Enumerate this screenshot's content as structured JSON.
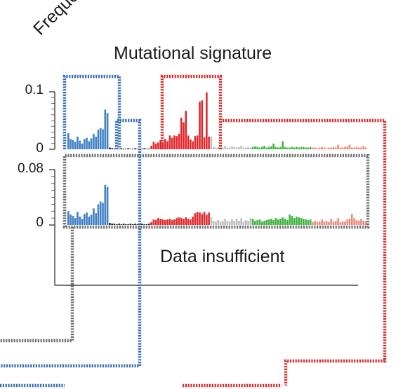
{
  "figure": {
    "title": "Mutational signature",
    "ylabel": "Frequency",
    "insufficient_label": "Data insufficient"
  },
  "colors": {
    "blue": "#3d7fc4",
    "black": "#1a1a1a",
    "red": "#e0262a",
    "gray": "#bdbdbd",
    "green": "#3bb33b",
    "salmon": "#ec8a78",
    "box_blue": "#3a6fb5",
    "box_gray": "#707070",
    "box_red": "#d32f2f"
  },
  "chart_data": [
    {
      "type": "bar",
      "panel": "top",
      "ylim": [
        0,
        0.1
      ],
      "ytick_labels": [
        "0",
        "0.1"
      ],
      "groups": [
        {
          "color": "blue",
          "values": [
            0.028,
            0.018,
            0.016,
            0.013,
            0.022,
            0.015,
            0.01,
            0.018,
            0.02,
            0.014,
            0.019,
            0.027,
            0.022,
            0.034,
            0.037,
            0.035,
            0.069,
            0.063
          ]
        },
        {
          "color": "black",
          "values": [
            0.003,
            0.002,
            0.001,
            0.002,
            0.001,
            0.002,
            0.001,
            0.001,
            0.002,
            0.001,
            0.001,
            0.002,
            0.001,
            0.001,
            0.001,
            0.002,
            0.001,
            0.001
          ]
        },
        {
          "color": "red",
          "values": [
            0.006,
            0.013,
            0.01,
            0.012,
            0.016,
            0.012,
            0.018,
            0.014,
            0.024,
            0.02,
            0.024,
            0.023,
            0.027,
            0.055,
            0.047,
            0.067,
            0.024,
            0.017,
            0.014,
            0.023,
            0.024,
            0.083,
            0.085,
            0.021,
            0.099,
            0.022
          ]
        },
        {
          "color": "gray",
          "values": [
            0.022,
            0.004,
            0.003,
            0.004,
            0.003,
            0.003,
            0.006,
            0.003,
            0.003,
            0.005,
            0.004,
            0.003,
            0.004,
            0.006,
            0.003,
            0.003,
            0.004,
            0.003
          ]
        },
        {
          "color": "green",
          "values": [
            0.004,
            0.005,
            0.004,
            0.003,
            0.004,
            0.006,
            0.003,
            0.004,
            0.005,
            0.01,
            0.004,
            0.003,
            0.004,
            0.014,
            0.004,
            0.003,
            0.003,
            0.004,
            0.003,
            0.004,
            0.003,
            0.004,
            0.004,
            0.003,
            0.003,
            0.004
          ]
        },
        {
          "color": "salmon",
          "values": [
            0.003,
            0.003,
            0.002,
            0.003,
            0.004,
            0.003,
            0.002,
            0.003,
            0.003,
            0.004,
            0.003,
            0.008,
            0.003,
            0.003,
            0.004,
            0.005,
            0.008,
            0.003,
            0.003,
            0.004,
            0.003,
            0.003,
            0.006,
            0.003
          ]
        }
      ]
    },
    {
      "type": "bar",
      "panel": "bottom",
      "ylim": [
        0,
        0.08
      ],
      "ytick_labels": [
        "0",
        "0.08"
      ],
      "groups": [
        {
          "color": "blue",
          "values": [
            0.02,
            0.015,
            0.013,
            0.01,
            0.019,
            0.012,
            0.009,
            0.016,
            0.018,
            0.012,
            0.015,
            0.024,
            0.017,
            0.03,
            0.034,
            0.032,
            0.058,
            0.055
          ]
        },
        {
          "color": "black",
          "values": [
            0.003,
            0.002,
            0.002,
            0.001,
            0.002,
            0.001,
            0.002,
            0.001,
            0.001,
            0.002,
            0.001,
            0.002,
            0.001,
            0.001,
            0.002,
            0.001,
            0.001,
            0.002
          ]
        },
        {
          "color": "red",
          "values": [
            0.004,
            0.008,
            0.007,
            0.01,
            0.009,
            0.008,
            0.007,
            0.008,
            0.009,
            0.007,
            0.008,
            0.01,
            0.011,
            0.01,
            0.009,
            0.011,
            0.009,
            0.008,
            0.012,
            0.017,
            0.019,
            0.018,
            0.016,
            0.019,
            0.015,
            0.018
          ]
        },
        {
          "color": "gray",
          "values": [
            0.011,
            0.006,
            0.005,
            0.007,
            0.005,
            0.006,
            0.009,
            0.006,
            0.005,
            0.008,
            0.006,
            0.009,
            0.006,
            0.01,
            0.005,
            0.007,
            0.006,
            0.01
          ]
        },
        {
          "color": "green",
          "values": [
            0.009,
            0.006,
            0.007,
            0.008,
            0.005,
            0.006,
            0.007,
            0.008,
            0.009,
            0.007,
            0.01,
            0.008,
            0.009,
            0.011,
            0.009,
            0.007,
            0.015,
            0.013,
            0.01,
            0.012,
            0.011,
            0.01,
            0.009,
            0.008,
            0.007,
            0.008
          ]
        },
        {
          "color": "salmon",
          "values": [
            0.004,
            0.006,
            0.004,
            0.005,
            0.008,
            0.005,
            0.006,
            0.004,
            0.009,
            0.005,
            0.006,
            0.01,
            0.004,
            0.005,
            0.005,
            0.008,
            0.009,
            0.016,
            0.01,
            0.007,
            0.006,
            0.009,
            0.006,
            0.005
          ]
        }
      ]
    }
  ]
}
